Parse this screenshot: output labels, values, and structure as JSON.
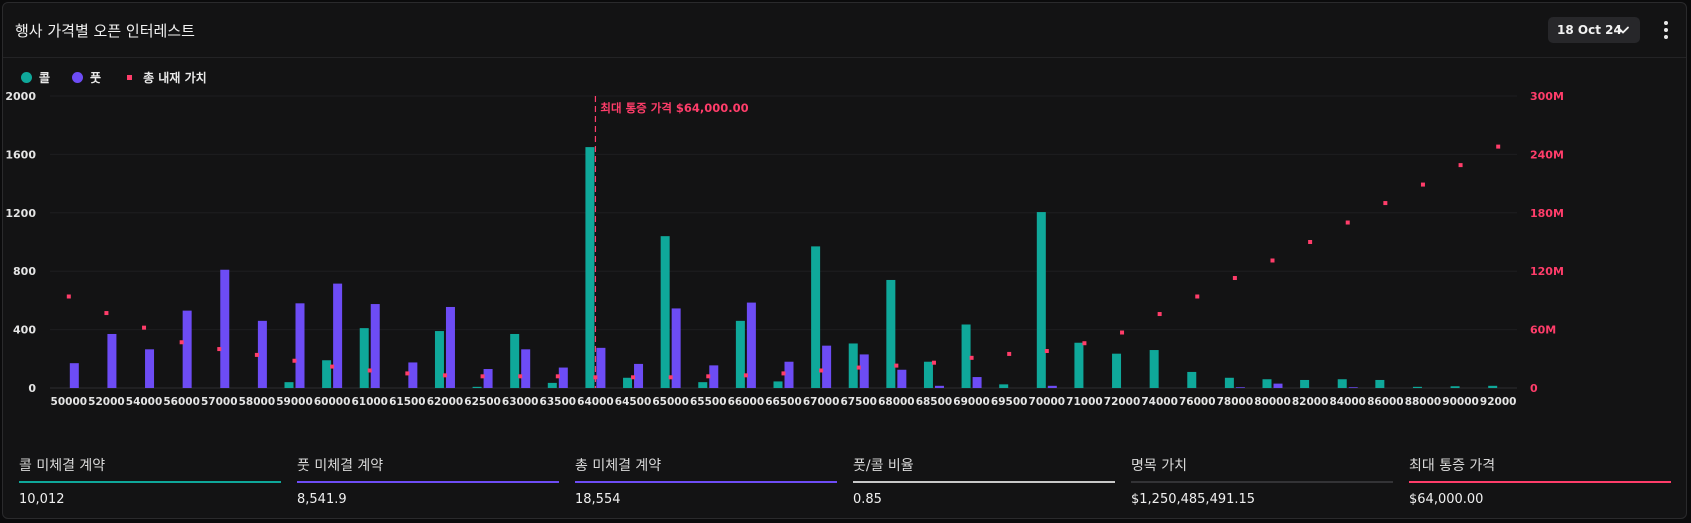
{
  "header": {
    "title": "행사 가격별 오픈 인터레스트",
    "date_label": "18 Oct 24"
  },
  "legend": {
    "call": "콜",
    "put": "풋",
    "intrinsic": "총 내재 가치"
  },
  "colors": {
    "call": "#0fa89a",
    "put": "#6d4cf5",
    "intrinsic": "#ff3d6a",
    "max_pain": "#ff3d6a",
    "notional": "#333336",
    "ratio": "#c8c8c8"
  },
  "chart_data": {
    "type": "bar",
    "categories": [
      "50000",
      "52000",
      "54000",
      "56000",
      "57000",
      "58000",
      "59000",
      "60000",
      "61000",
      "61500",
      "62000",
      "62500",
      "63000",
      "63500",
      "64000",
      "64500",
      "65000",
      "65500",
      "66000",
      "66500",
      "67000",
      "67500",
      "68000",
      "68500",
      "69000",
      "69500",
      "70000",
      "71000",
      "72000",
      "74000",
      "76000",
      "78000",
      "80000",
      "82000",
      "84000",
      "86000",
      "88000",
      "90000",
      "92000"
    ],
    "series": [
      {
        "name": "콜",
        "values": [
          0,
          0,
          0,
          0,
          0,
          0,
          40,
          190,
          410,
          0,
          390,
          8,
          370,
          35,
          1650,
          70,
          1040,
          40,
          460,
          45,
          970,
          305,
          740,
          180,
          435,
          25,
          1205,
          310,
          235,
          260,
          110,
          70,
          60,
          55,
          60,
          55,
          8,
          12,
          15
        ]
      },
      {
        "name": "풋",
        "values": [
          170,
          370,
          265,
          530,
          810,
          460,
          580,
          715,
          575,
          175,
          555,
          130,
          265,
          140,
          275,
          165,
          545,
          155,
          585,
          180,
          290,
          230,
          125,
          15,
          75,
          0,
          15,
          0,
          0,
          0,
          0,
          5,
          30,
          0,
          5,
          0,
          0,
          0,
          0
        ]
      },
      {
        "name": "총 내재 가치",
        "values": [
          94,
          77,
          62,
          47,
          40,
          34,
          28,
          22,
          18,
          15,
          13,
          12,
          12,
          12,
          11,
          11,
          11,
          12,
          13,
          15,
          18,
          21,
          23,
          26,
          31,
          35,
          38,
          46,
          57,
          76,
          94,
          113,
          131,
          150,
          170,
          190,
          209,
          229,
          248
        ]
      }
    ],
    "y_left": {
      "ylim": [
        0,
        2000
      ],
      "ticks": [
        "0",
        "400",
        "800",
        "1200",
        "1600",
        "2000"
      ]
    },
    "y_right": {
      "ylim": [
        0,
        300
      ],
      "ticks": [
        "0",
        "60M",
        "120M",
        "180M",
        "240M",
        "300M"
      ]
    },
    "max_pain": {
      "category": "64000",
      "label": "최대 통증 가격 $64,000.00"
    },
    "grid": true
  },
  "stats": [
    {
      "label": "콜 미체결 계약",
      "value": "10,012"
    },
    {
      "label": "풋 미체결 계약",
      "value": "8,541.9"
    },
    {
      "label": "총 미체결 계약",
      "value": "18,554"
    },
    {
      "label": "풋/콜 비율",
      "value": "0.85"
    },
    {
      "label": "명목 가치",
      "value": "$1,250,485,491.15"
    },
    {
      "label": "최대 통증 가격",
      "value": "$64,000.00"
    }
  ]
}
